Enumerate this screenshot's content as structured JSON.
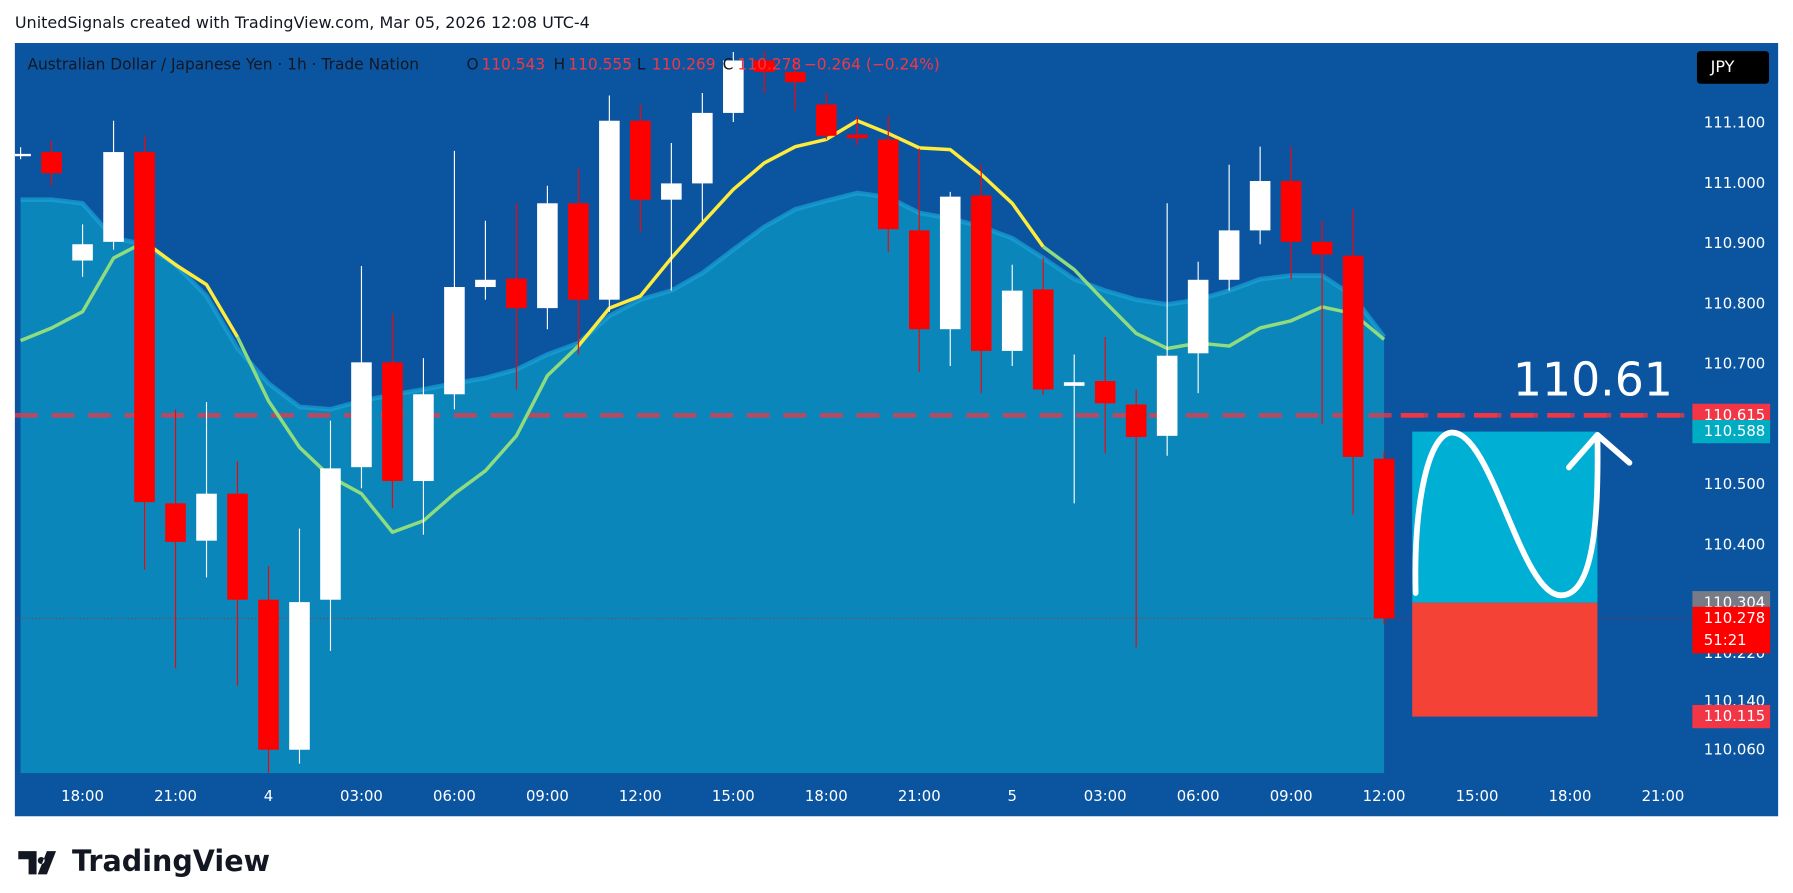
{
  "chart_data": {
    "type": "candlestick",
    "header": "UnitedSignals created with TradingView.com, Mar 05, 2026 12:08 UTC-4",
    "title": "Australian Dollar / Japanese Yen · 1h · Trade Nation",
    "legend": {
      "labels": [
        "O",
        "H",
        "L",
        "C"
      ],
      "change": "−0.264 (−0.24%)"
    },
    "currency": "JPY",
    "brand": "TradingView",
    "annotation": "110.61",
    "countdown": "51:21",
    "up_color": "#ffffff",
    "down_color": "#ff0000",
    "categories": [
      null,
      null,
      "18:00",
      null,
      null,
      "21:00",
      null,
      null,
      "4",
      null,
      null,
      "03:00",
      null,
      null,
      "06:00",
      null,
      null,
      "09:00",
      null,
      null,
      "12:00",
      null,
      null,
      "15:00",
      null,
      null,
      "18:00",
      null,
      null,
      "21:00",
      null,
      null,
      "5",
      null,
      null,
      "03:00",
      null,
      null,
      "06:00",
      null,
      null,
      "09:00",
      null,
      null,
      "12:00",
      null,
      null,
      "15:00",
      null,
      null,
      "18:00",
      null,
      null,
      "21:00"
    ],
    "open": [
      111.047,
      111.052,
      110.872,
      110.903,
      111.052,
      110.469,
      110.407,
      110.485,
      110.309,
      110.06,
      110.309,
      110.529,
      110.703,
      110.506,
      110.65,
      110.828,
      110.842,
      110.793,
      110.967,
      110.807,
      111.104,
      110.973,
      111.0,
      111.117,
      111.204,
      111.185,
      111.131,
      111.081,
      111.073,
      110.922,
      110.758,
      110.98,
      110.722,
      110.824,
      110.664,
      110.672,
      110.633,
      110.581,
      110.718,
      110.84,
      110.922,
      111.004,
      110.903,
      110.88,
      110.543,
      null,
      null,
      null,
      null,
      null,
      null,
      null,
      null,
      null
    ],
    "high": [
      111.06,
      111.071,
      110.932,
      111.104,
      111.079,
      110.625,
      110.637,
      110.539,
      110.365,
      110.427,
      110.606,
      110.863,
      110.784,
      110.71,
      111.054,
      110.938,
      110.967,
      110.996,
      111.025,
      111.146,
      111.131,
      111.067,
      111.15,
      111.218,
      111.22,
      111.208,
      111.15,
      111.112,
      111.112,
      111.058,
      110.986,
      111.031,
      110.865,
      110.876,
      110.716,
      110.745,
      110.658,
      110.967,
      110.87,
      111.031,
      111.061,
      111.061,
      110.938,
      110.957,
      110.555,
      null,
      null,
      null,
      null,
      null,
      null,
      null,
      null,
      null
    ],
    "low": [
      111.04,
      110.996,
      110.845,
      110.89,
      110.359,
      110.195,
      110.346,
      110.166,
      110.022,
      110.037,
      110.224,
      110.494,
      110.461,
      110.417,
      110.625,
      110.807,
      110.658,
      110.758,
      110.716,
      110.787,
      110.919,
      110.822,
      110.938,
      111.102,
      111.15,
      111.121,
      111.073,
      111.063,
      110.886,
      110.687,
      110.697,
      110.652,
      110.697,
      110.649,
      110.469,
      110.552,
      110.23,
      110.548,
      110.652,
      110.822,
      110.899,
      110.841,
      110.6,
      110.45,
      110.269,
      null,
      null,
      null,
      null,
      null,
      null,
      null,
      null,
      null
    ],
    "close": [
      111.049,
      111.017,
      110.899,
      111.052,
      110.471,
      110.405,
      110.485,
      110.309,
      110.06,
      110.305,
      110.527,
      110.703,
      110.506,
      110.65,
      110.828,
      110.84,
      110.793,
      110.967,
      110.807,
      111.104,
      110.973,
      111.0,
      111.117,
      111.204,
      111.185,
      111.168,
      111.079,
      111.075,
      110.924,
      110.758,
      110.978,
      110.722,
      110.822,
      110.658,
      110.67,
      110.635,
      110.579,
      110.714,
      110.84,
      110.922,
      111.004,
      110.903,
      110.882,
      110.546,
      110.278,
      null,
      null,
      null,
      null,
      null,
      null,
      null,
      null,
      null
    ],
    "band": {
      "color": "#0a86bb",
      "values": [
        110.973,
        110.973,
        110.967,
        110.909,
        110.899,
        110.865,
        110.813,
        110.726,
        110.668,
        110.629,
        110.625,
        110.639,
        110.649,
        110.658,
        110.668,
        110.677,
        110.691,
        110.716,
        110.735,
        110.78,
        110.807,
        110.822,
        110.851,
        110.89,
        110.928,
        110.957,
        110.971,
        110.984,
        110.977,
        110.951,
        110.942,
        110.928,
        110.909,
        110.876,
        110.841,
        110.822,
        110.807,
        110.799,
        110.807,
        110.822,
        110.841,
        110.847,
        110.847,
        110.813,
        110.745,
        null,
        null,
        null,
        null,
        null,
        null,
        null,
        null,
        null
      ]
    },
    "lines": [
      {
        "color": "#ffeb3b",
        "values": [
          null,
          null,
          null,
          null,
          110.903,
          110.865,
          110.832,
          110.745,
          null,
          null,
          null,
          null,
          null,
          null,
          null,
          null,
          null,
          null,
          110.73,
          110.793,
          110.813,
          110.876,
          110.934,
          110.99,
          111.034,
          111.061,
          111.073,
          111.104,
          111.083,
          111.059,
          111.056,
          111.015,
          110.967,
          110.895,
          null,
          null,
          null,
          null,
          null,
          null,
          null,
          null,
          null,
          null,
          null,
          null,
          null,
          null,
          null,
          null,
          null,
          null,
          null,
          null
        ]
      },
      {
        "color": "#8fdc7e",
        "values": [
          110.739,
          110.76,
          110.787,
          110.876,
          110.903,
          null,
          null,
          110.745,
          110.639,
          110.562,
          110.513,
          110.485,
          110.421,
          110.44,
          110.485,
          110.523,
          110.581,
          110.681,
          110.73,
          null,
          null,
          null,
          null,
          null,
          null,
          null,
          null,
          null,
          null,
          null,
          null,
          null,
          null,
          110.895,
          110.857,
          110.803,
          110.751,
          110.726,
          110.735,
          110.73,
          110.76,
          110.772,
          110.795,
          110.784,
          110.741,
          null,
          null,
          null,
          null,
          null,
          null,
          null,
          null,
          null
        ]
      }
    ],
    "markers": [
      {
        "value": 110.615,
        "color": "#f23645"
      },
      {
        "value": 110.588,
        "color": "#00acc1"
      },
      {
        "value": 110.304,
        "color": "#787b86"
      },
      {
        "value": 110.115,
        "color": "#f23645"
      }
    ],
    "ylim": [
      110.021,
      111.233
    ],
    "yticks": [
      {
        "value": 111.1,
        "label": "111.100"
      },
      {
        "value": 111.0,
        "label": "111.000"
      },
      {
        "value": 110.9,
        "label": "110.900"
      },
      {
        "value": 110.8,
        "label": "110.800"
      },
      {
        "value": 110.7,
        "label": "110.700"
      },
      {
        "value": 110.5,
        "label": "110.500"
      },
      {
        "value": 110.4,
        "label": "110.400"
      },
      {
        "value": 110.22,
        "label": "110.220"
      },
      {
        "value": 110.14,
        "label": "110.140"
      },
      {
        "value": 110.06,
        "label": "110.060"
      }
    ]
  }
}
